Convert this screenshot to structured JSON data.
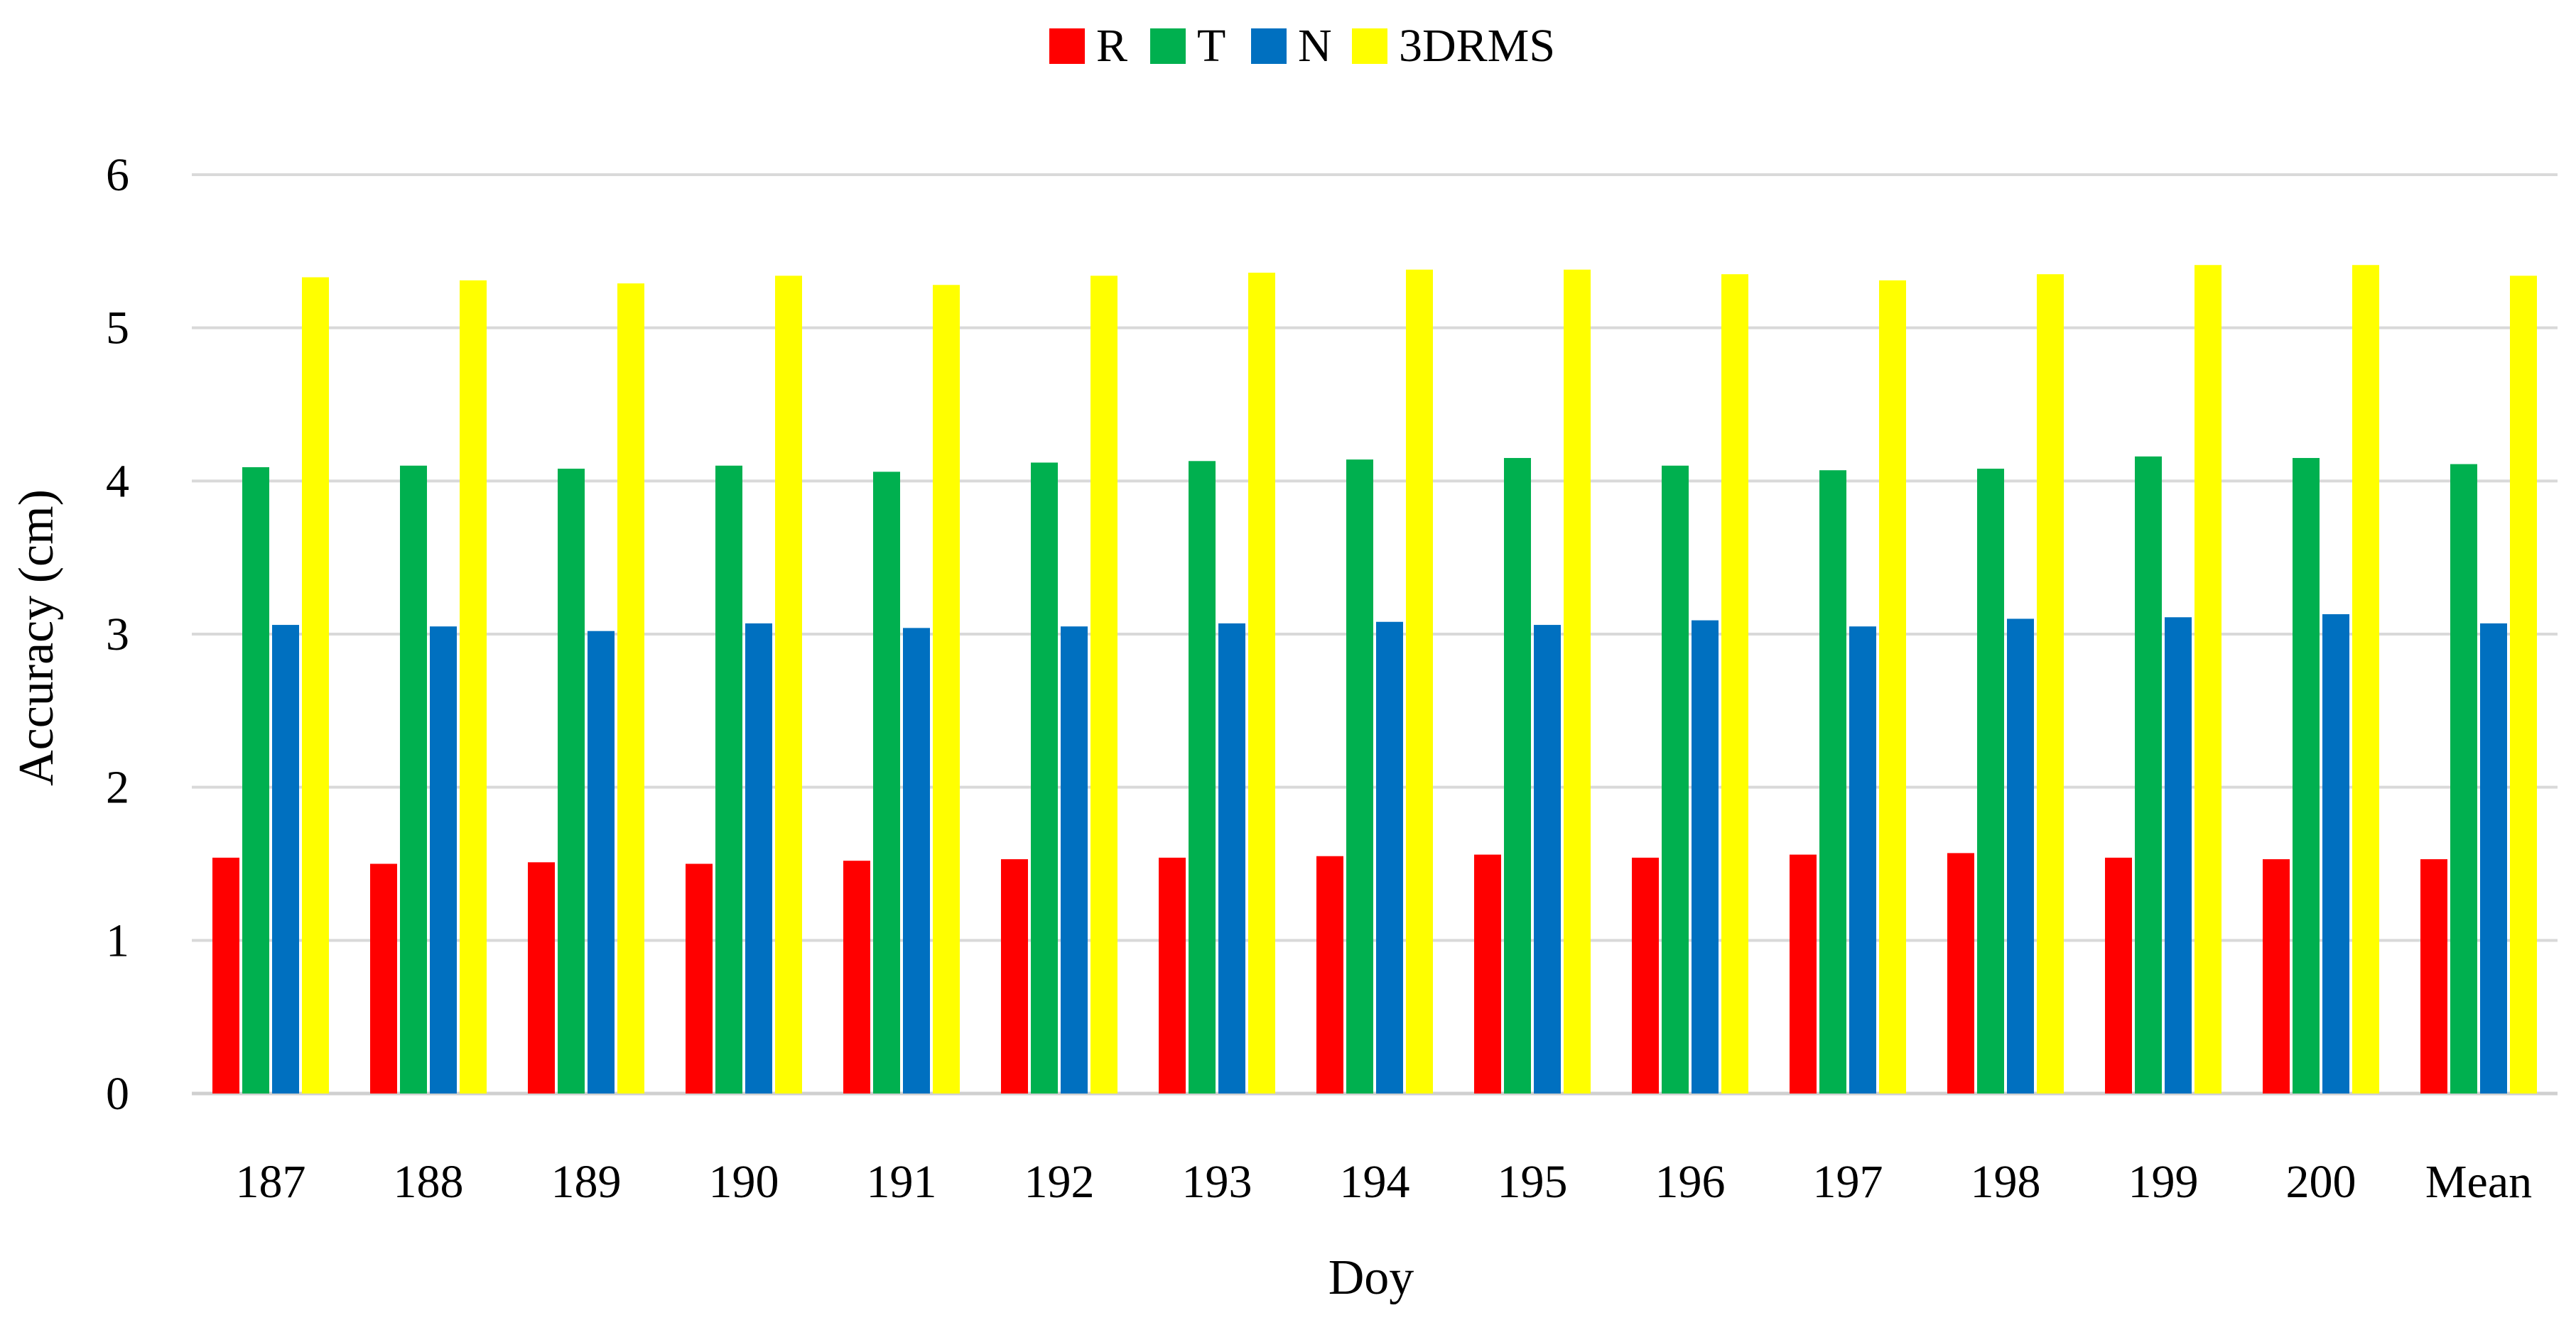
{
  "chart_data": {
    "type": "bar",
    "title": "",
    "xlabel": "Doy",
    "ylabel": "Accuracy (cm)",
    "ylim": [
      0,
      6
    ],
    "yticks": [
      0,
      1,
      2,
      3,
      4,
      5,
      6
    ],
    "grid": true,
    "legend_position": "top-center",
    "categories": [
      "187",
      "188",
      "189",
      "190",
      "191",
      "192",
      "193",
      "194",
      "195",
      "196",
      "197",
      "198",
      "199",
      "200",
      "Mean"
    ],
    "series": [
      {
        "name": "R",
        "color": "#ff0000",
        "values": [
          1.54,
          1.5,
          1.51,
          1.5,
          1.52,
          1.53,
          1.54,
          1.55,
          1.56,
          1.54,
          1.56,
          1.57,
          1.54,
          1.53,
          1.53
        ]
      },
      {
        "name": "T",
        "color": "#00b04f",
        "values": [
          4.09,
          4.1,
          4.08,
          4.1,
          4.06,
          4.12,
          4.13,
          4.14,
          4.15,
          4.1,
          4.07,
          4.08,
          4.16,
          4.15,
          4.11
        ]
      },
      {
        "name": "N",
        "color": "#0070c0",
        "values": [
          3.06,
          3.05,
          3.02,
          3.07,
          3.04,
          3.05,
          3.07,
          3.08,
          3.06,
          3.09,
          3.05,
          3.1,
          3.11,
          3.13,
          3.07
        ]
      },
      {
        "name": "3DRMS",
        "color": "#ffff00",
        "values": [
          5.33,
          5.31,
          5.29,
          5.34,
          5.28,
          5.34,
          5.36,
          5.38,
          5.38,
          5.35,
          5.31,
          5.35,
          5.41,
          5.41,
          5.34
        ]
      }
    ]
  }
}
